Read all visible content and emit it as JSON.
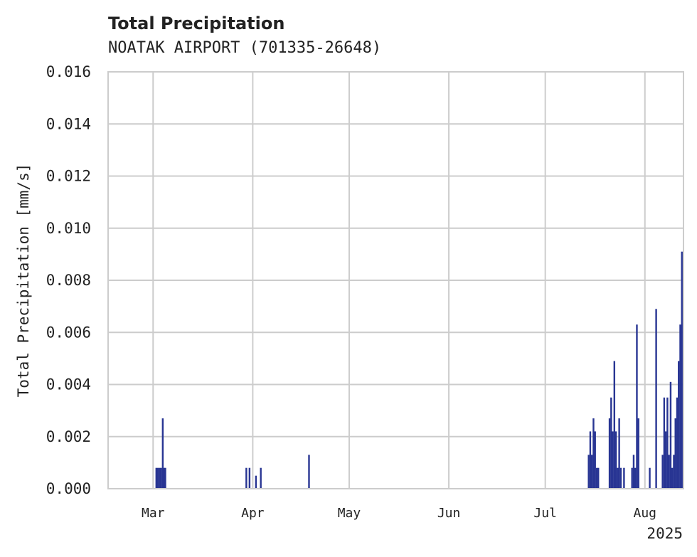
{
  "chart_data": {
    "type": "bar",
    "title": "Total Precipitation",
    "subtitle": "NOATAK AIRPORT (701335-26648)",
    "ylabel": "Total Precipitation [mm/s]",
    "xlabel": "",
    "year_label": "2025",
    "ylim": [
      0,
      0.016
    ],
    "yticks": [
      0.0,
      0.002,
      0.004,
      0.006,
      0.008,
      0.01,
      0.012,
      0.014,
      0.016
    ],
    "ytick_labels": [
      "0.000",
      "0.002",
      "0.004",
      "0.006",
      "0.008",
      "0.010",
      "0.012",
      "0.014",
      "0.016"
    ],
    "xlim_days": [
      -14,
      165
    ],
    "xticks": [
      {
        "label": "Mar",
        "day": 0
      },
      {
        "label": "Apr",
        "day": 31
      },
      {
        "label": "May",
        "day": 61
      },
      {
        "label": "Jun",
        "day": 92
      },
      {
        "label": "Jul",
        "day": 122
      },
      {
        "label": "Aug",
        "day": 153
      }
    ],
    "grid": true,
    "bar_color": "#283593",
    "grid_color": "#cccccc",
    "series": [
      {
        "name": "Total Precipitation",
        "unit": "mm/s",
        "x_days": [
          1.0,
          1.5,
          2.0,
          2.5,
          3.0,
          3.4,
          3.8,
          29.0,
          30.0,
          32.0,
          33.5,
          48.5,
          135.5,
          136.0,
          136.5,
          137.0,
          137.5,
          138.0,
          138.5,
          142.0,
          142.5,
          143.0,
          143.5,
          144.0,
          144.5,
          145.0,
          145.5,
          146.5,
          149.0,
          149.5,
          150.0,
          150.5,
          151.0,
          154.5,
          156.5,
          158.5,
          159.0,
          159.5,
          160.0,
          160.5,
          161.0,
          161.5,
          162.0,
          162.5,
          163.0,
          163.5,
          164.0,
          164.5
        ],
        "values": [
          0.0008,
          0.0008,
          0.0008,
          0.0008,
          0.0027,
          0.0008,
          0.0008,
          0.0008,
          0.0008,
          0.0005,
          0.0008,
          0.0013,
          0.0013,
          0.0022,
          0.0013,
          0.0027,
          0.0022,
          0.0008,
          0.0008,
          0.0027,
          0.0035,
          0.0022,
          0.0049,
          0.0022,
          0.0008,
          0.0027,
          0.0008,
          0.0008,
          0.0008,
          0.0013,
          0.0008,
          0.0063,
          0.0027,
          0.0008,
          0.0069,
          0.0013,
          0.0035,
          0.0022,
          0.0035,
          0.0013,
          0.0041,
          0.0008,
          0.0013,
          0.0027,
          0.0035,
          0.0049,
          0.0063,
          0.0091
        ]
      }
    ]
  }
}
